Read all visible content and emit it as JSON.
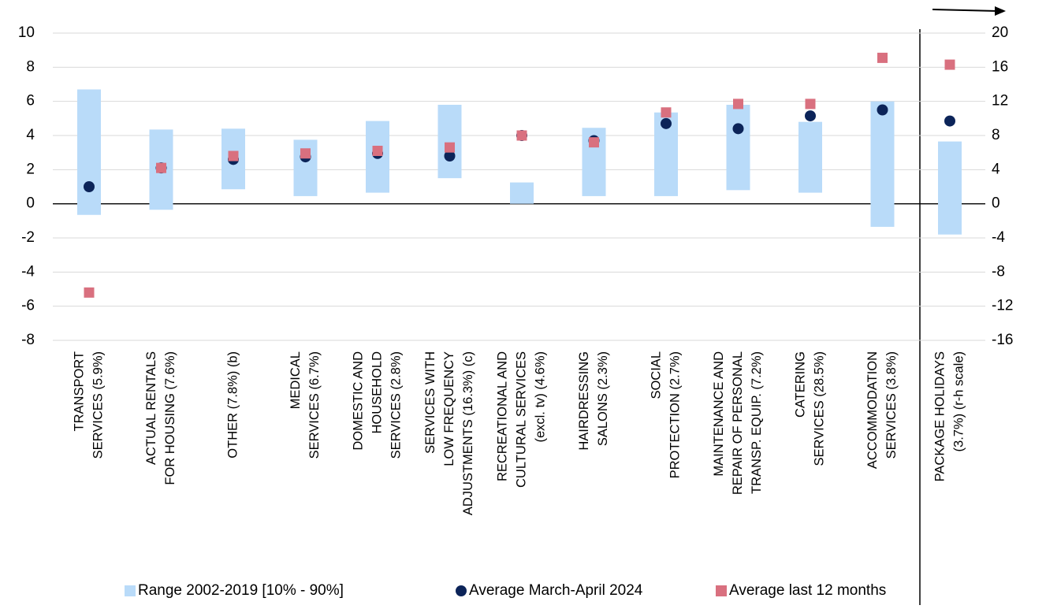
{
  "chart_data": {
    "type": "range_dot",
    "categories": [
      [
        "TRANSPORT",
        "SERVICES (5.9%)"
      ],
      [
        "ACTUAL RENTALS",
        "FOR HOUSING (7.6%)"
      ],
      [
        "OTHER (7.8%) (b)"
      ],
      [
        "MEDICAL",
        "SERVICES (6.7%)"
      ],
      [
        "DOMESTIC AND",
        "HOUSEHOLD",
        "SERVICES (2.8%)"
      ],
      [
        "SERVICES WITH",
        "LOW FREQUENCY",
        "ADJUSTMENTS (16.3%) (c)"
      ],
      [
        "RECREATIONAL AND",
        "CULTURAL SERVICES",
        "(excl. tv) (4.6%)"
      ],
      [
        "HAIRDRESSING",
        "SALONS (2.3%)"
      ],
      [
        "SOCIAL",
        "PROTECTION (2.7%)"
      ],
      [
        "MAINTENANCE AND",
        "REPAIR OF PERSONAL",
        "TRANSP. EQUIP. (7.2%)"
      ],
      [
        "CATERING",
        "SERVICES (28.5%)"
      ],
      [
        "ACCOMMODATION",
        "SERVICES (3.8%)"
      ],
      [
        "PACKAGE HOLIDAYS",
        "(3.7%) (r-h scale)"
      ]
    ],
    "category_axis": [
      "y",
      "y",
      "y",
      "y",
      "y",
      "y",
      "y",
      "y",
      "y",
      "y",
      "y",
      "y",
      "y2"
    ],
    "series": [
      {
        "name": "Range 2002-2019 [10% - 90%]",
        "color": "#b9dbf9",
        "marker": "range",
        "low": [
          -0.65,
          -0.35,
          0.85,
          0.45,
          0.65,
          1.5,
          0,
          0.45,
          0.45,
          0.8,
          0.65,
          -1.35,
          -3.6
        ],
        "high": [
          6.7,
          4.35,
          4.4,
          3.75,
          4.85,
          5.8,
          1.25,
          4.45,
          5.35,
          5.8,
          4.8,
          6.0,
          7.3
        ]
      },
      {
        "name": "Average March-April 2024",
        "color": "#0c2459",
        "marker": "circle",
        "values": [
          1.0,
          2.1,
          2.6,
          2.75,
          2.95,
          2.8,
          4.0,
          3.7,
          4.7,
          4.4,
          5.15,
          5.5,
          9.7
        ]
      },
      {
        "name": "Average last 12 months",
        "color": "#d9707f",
        "marker": "square",
        "values": [
          -5.2,
          2.1,
          2.8,
          2.95,
          3.1,
          3.3,
          4.0,
          3.6,
          5.35,
          5.85,
          5.85,
          8.55,
          16.3
        ]
      }
    ],
    "ylim": [
      -8,
      10
    ],
    "yticks": [
      -8,
      -6,
      -4,
      -2,
      0,
      2,
      4,
      6,
      8,
      10
    ],
    "y2lim": [
      -16,
      20
    ],
    "y2ticks": [
      -16,
      -12,
      -8,
      -4,
      0,
      4,
      8,
      12,
      16,
      20
    ],
    "grid": true
  }
}
